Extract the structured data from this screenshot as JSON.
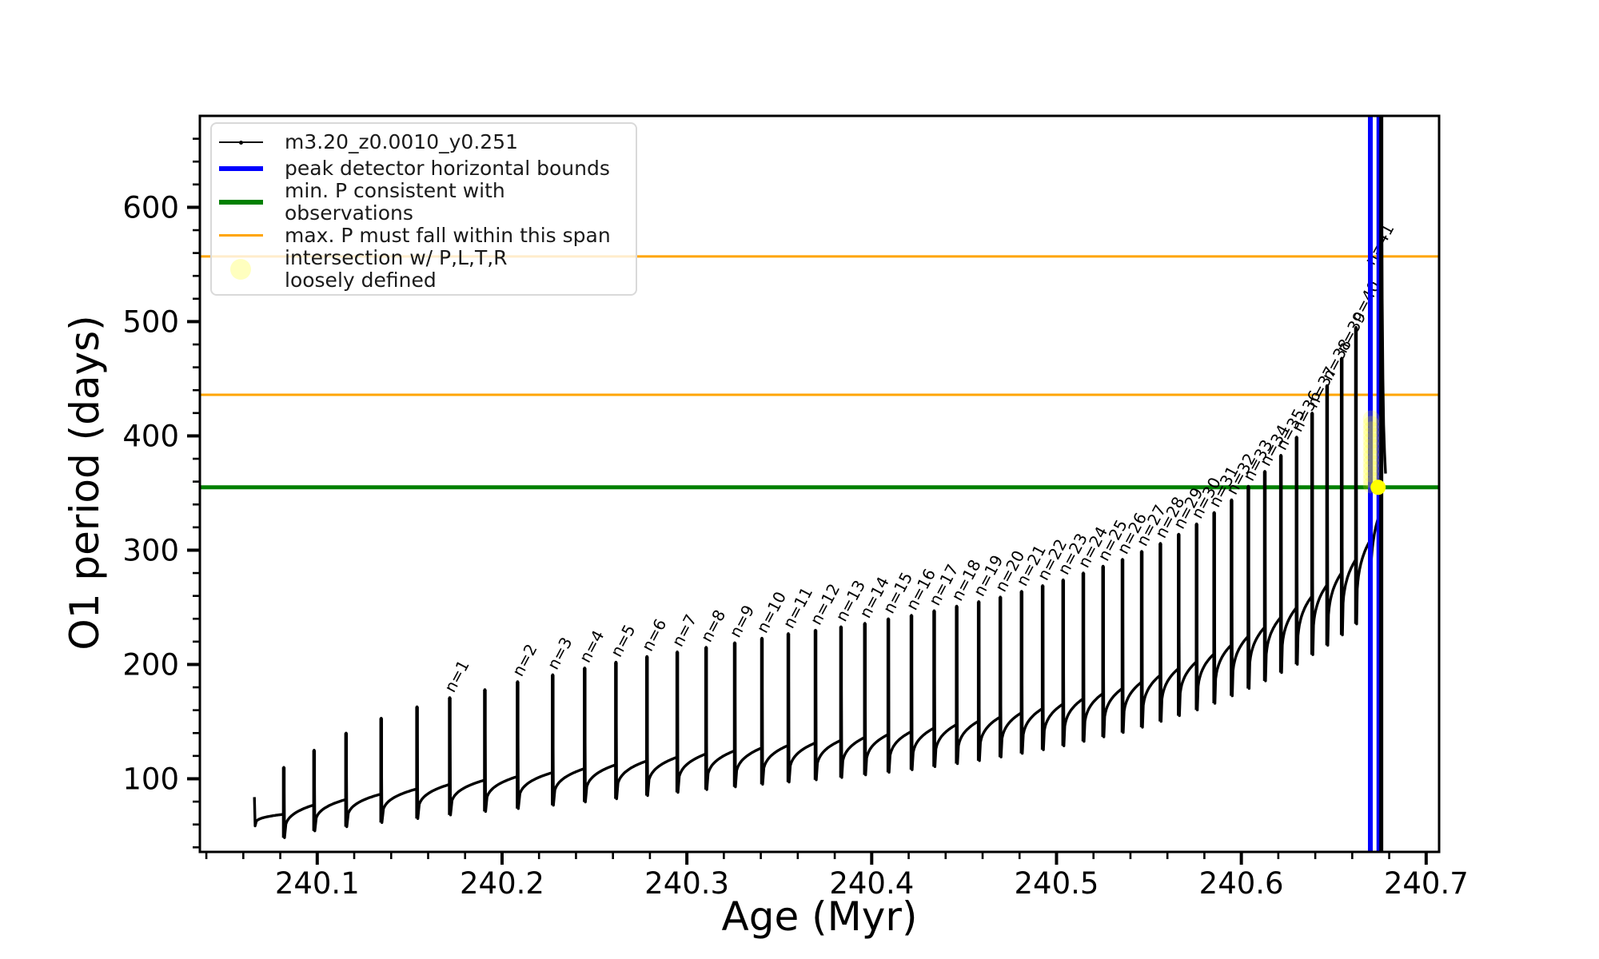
{
  "figure": {
    "xlabel": "Age (Myr)",
    "ylabel": "O1 period (days)",
    "background_color": "#ffffff",
    "frame_color": "#000000"
  },
  "legend": {
    "entries": [
      {
        "label": "m3.20_z0.0010_y0.251",
        "type": "line-dot",
        "color": "#000000",
        "thickness": 2
      },
      {
        "label": "peak detector horizontal bounds",
        "type": "line",
        "color": "#0000ff",
        "thickness": 6
      },
      {
        "label": "min. P consistent with observations",
        "type": "line",
        "color": "#008000",
        "thickness": 6
      },
      {
        "label": "max. P must fall within this span",
        "type": "line",
        "color": "#ffa500",
        "thickness": 3
      },
      {
        "label": "intersection w/ P,L,T,R\nloosely defined",
        "type": "marker",
        "color": "rgba(255,255,0,0.25)"
      }
    ]
  },
  "chart_data": {
    "type": "line",
    "title": "",
    "xlabel": "Age (Myr)",
    "ylabel": "O1 period (days)",
    "xlim": [
      240.0365,
      240.707
    ],
    "ylim": [
      36,
      680
    ],
    "grid": false,
    "legend_position": "upper left",
    "x_major_ticks": [
      240.1,
      240.2,
      240.3,
      240.4,
      240.5,
      240.6,
      240.7
    ],
    "x_tick_labels": [
      "240.1",
      "240.2",
      "240.3",
      "240.4",
      "240.5",
      "240.6",
      "240.7"
    ],
    "x_minor_step": 0.02,
    "y_major_ticks": [
      100,
      200,
      300,
      400,
      500,
      600
    ],
    "y_tick_labels": [
      "100",
      "200",
      "300",
      "400",
      "500",
      "600"
    ],
    "y_minor_step": 20,
    "series": [
      {
        "name": "m3.20_z0.0010_y0.251",
        "color": "#000000"
      }
    ],
    "hlines": [
      {
        "y": 557,
        "color": "#ffa500",
        "width": 3,
        "role": "max-P-span-upper"
      },
      {
        "y": 436,
        "color": "#ffa500",
        "width": 3,
        "role": "max-P-span-lower"
      },
      {
        "y": 355,
        "color": "#008000",
        "width": 5,
        "role": "min-P-consistent"
      }
    ],
    "vlines": [
      {
        "x": 240.6698,
        "color": "#0000ff",
        "width": 6,
        "role": "peak-detector-left"
      },
      {
        "x": 240.674,
        "color": "#0000ff",
        "width": 4,
        "role": "peak-detector-right"
      },
      {
        "x": 240.6757,
        "color": "#000000",
        "width": 5,
        "role": "final-period-ascent"
      }
    ],
    "pulses": [
      [
        240.0819,
        110,
        ""
      ],
      [
        240.0983,
        125,
        ""
      ],
      [
        240.1156,
        140,
        ""
      ],
      [
        240.1346,
        153,
        ""
      ],
      [
        240.154,
        163,
        ""
      ],
      [
        240.1717,
        171,
        "n=1"
      ],
      [
        240.1907,
        178,
        ""
      ],
      [
        240.2084,
        185,
        "n=2"
      ],
      [
        240.2274,
        191,
        "n=3"
      ],
      [
        240.2447,
        197,
        "n=4"
      ],
      [
        240.2616,
        202,
        "n=5"
      ],
      [
        240.2784,
        207,
        "n=6"
      ],
      [
        240.2948,
        211,
        "n=7"
      ],
      [
        240.3104,
        215,
        "n=8"
      ],
      [
        240.3259,
        219,
        "n=9"
      ],
      [
        240.3406,
        223,
        "n=10"
      ],
      [
        240.3549,
        227,
        "n=11"
      ],
      [
        240.3696,
        230,
        "n=12"
      ],
      [
        240.3834,
        233,
        "n=13"
      ],
      [
        240.3963,
        236,
        "n=14"
      ],
      [
        240.409,
        240,
        "n=15"
      ],
      [
        240.4215,
        243,
        "n=16"
      ],
      [
        240.4338,
        247,
        "n=17"
      ],
      [
        240.446,
        251,
        "n=18"
      ],
      [
        240.4579,
        255,
        "n=19"
      ],
      [
        240.4696,
        259,
        "n=20"
      ],
      [
        240.4811,
        264,
        "n=21"
      ],
      [
        240.4925,
        269,
        "n=22"
      ],
      [
        240.5036,
        274,
        "n=23"
      ],
      [
        240.5145,
        280,
        "n=24"
      ],
      [
        240.5252,
        286,
        "n=25"
      ],
      [
        240.5357,
        292,
        "n=26"
      ],
      [
        240.5461,
        299,
        "n=27"
      ],
      [
        240.5562,
        306,
        "n=28"
      ],
      [
        240.5661,
        314,
        "n=29"
      ],
      [
        240.5758,
        323,
        "n=30"
      ],
      [
        240.5853,
        333,
        "n=31"
      ],
      [
        240.5947,
        344,
        "n=32"
      ],
      [
        240.6038,
        356,
        "n=33"
      ],
      [
        240.6127,
        369,
        "n=34"
      ],
      [
        240.6214,
        383,
        "n=35"
      ],
      [
        240.6299,
        399,
        "n=36"
      ],
      [
        240.6383,
        420,
        "n=37"
      ],
      [
        240.6464,
        444,
        "n=38"
      ],
      [
        240.6543,
        468,
        "n=39"
      ],
      [
        240.662,
        495,
        "n=40"
      ],
      [
        240.6695,
        545,
        "n=41"
      ]
    ],
    "baseline": [
      [
        240.066,
        84
      ],
      [
        240.072,
        64
      ],
      [
        240.1,
        78
      ],
      [
        240.14,
        88
      ],
      [
        240.18,
        97
      ],
      [
        240.22,
        104
      ],
      [
        240.26,
        112
      ],
      [
        240.3,
        120
      ],
      [
        240.34,
        127
      ],
      [
        240.38,
        133
      ],
      [
        240.42,
        141
      ],
      [
        240.46,
        151
      ],
      [
        240.5,
        164
      ],
      [
        240.54,
        181
      ],
      [
        240.58,
        205
      ],
      [
        240.61,
        230
      ],
      [
        240.63,
        250
      ],
      [
        240.65,
        274
      ],
      [
        240.662,
        292
      ],
      [
        240.6695,
        308
      ],
      [
        240.676,
        335
      ]
    ],
    "final_ascent": {
      "x": 240.6757,
      "tail": [
        [
          240.6757,
          680
        ],
        [
          240.6762,
          520
        ],
        [
          240.6766,
          450
        ],
        [
          240.677,
          410
        ],
        [
          240.6775,
          385
        ],
        [
          240.678,
          367
        ]
      ]
    },
    "intersection_markers": {
      "column_x": 240.6703,
      "column_y_top": 415,
      "column_y_bottom": 357,
      "column_count": 13,
      "faint_color": "rgba(255,255,0,0.20)",
      "solid": {
        "x": 240.674,
        "y": 355,
        "color": "#ffff00"
      }
    },
    "pulse_label_rotation_deg": -62,
    "pulse_label_font_px": 20
  }
}
